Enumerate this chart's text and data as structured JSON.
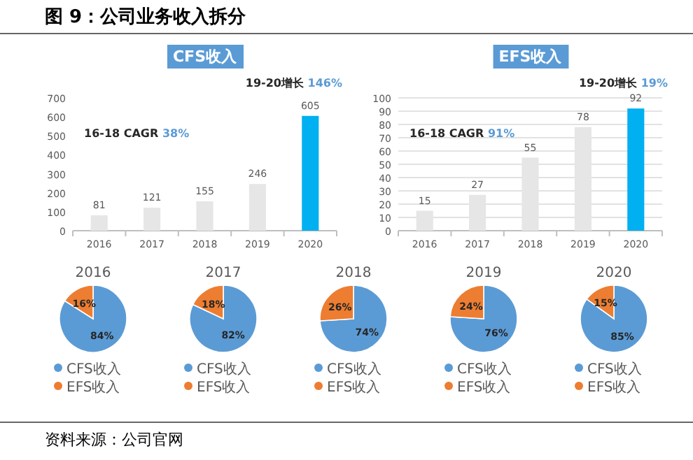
{
  "chart_data": [
    {
      "type": "other",
      "title": "图 9：公司业务收入拆分",
      "annotations": [
        "资料来源：公司官网"
      ]
    },
    {
      "type": "bar",
      "title": "CFS收入",
      "categories": [
        "2016",
        "2017",
        "2018",
        "2019",
        "2020"
      ],
      "values": [
        81,
        121,
        155,
        246,
        605
      ],
      "colors": [
        "#e6e6e6",
        "#e6e6e6",
        "#e6e6e6",
        "#e6e6e6",
        "#00b0f0"
      ],
      "ylim": [
        0,
        700
      ],
      "yticks": [
        0,
        100,
        200,
        300,
        400,
        500,
        600,
        700
      ],
      "data_labels": true,
      "annotations": [
        "16-18 CAGR 38%",
        "19-20增长 146%"
      ]
    },
    {
      "type": "bar",
      "title": "EFS收入",
      "categories": [
        "2016",
        "2017",
        "2018",
        "2019",
        "2020"
      ],
      "values": [
        15,
        27,
        55,
        78,
        92
      ],
      "colors": [
        "#e6e6e6",
        "#e6e6e6",
        "#e6e6e6",
        "#e6e6e6",
        "#00b0f0"
      ],
      "ylim": [
        0,
        100
      ],
      "yticks": [
        0,
        10,
        20,
        30,
        40,
        50,
        60,
        70,
        80,
        90,
        100
      ],
      "grid": "y",
      "data_labels": true,
      "annotations": [
        "16-18 CAGR 91%",
        "19-20增长 19%"
      ]
    },
    {
      "type": "pie",
      "title": "2016",
      "categories": [
        "CFS收入",
        "EFS收入"
      ],
      "values": [
        84,
        16
      ],
      "value_labels": [
        "84%",
        "16%"
      ],
      "colors": [
        "#5b9bd5",
        "#ed7d31"
      ],
      "legend": "bottom"
    },
    {
      "type": "pie",
      "title": "2017",
      "categories": [
        "CFS收入",
        "EFS收入"
      ],
      "values": [
        82,
        18
      ],
      "value_labels": [
        "82%",
        "18%"
      ],
      "colors": [
        "#5b9bd5",
        "#ed7d31"
      ],
      "legend": "bottom"
    },
    {
      "type": "pie",
      "title": "2018",
      "categories": [
        "CFS收入",
        "EFS收入"
      ],
      "values": [
        74,
        26
      ],
      "value_labels": [
        "74%",
        "26%"
      ],
      "colors": [
        "#5b9bd5",
        "#ed7d31"
      ],
      "legend": "bottom"
    },
    {
      "type": "pie",
      "title": "2019",
      "categories": [
        "CFS收入",
        "EFS收入"
      ],
      "values": [
        76,
        24
      ],
      "value_labels": [
        "76%",
        "24%"
      ],
      "colors": [
        "#5b9bd5",
        "#ed7d31"
      ],
      "legend": "bottom"
    },
    {
      "type": "pie",
      "title": "2020",
      "categories": [
        "CFS收入",
        "EFS收入"
      ],
      "values": [
        85,
        15
      ],
      "value_labels": [
        "85%",
        "15%"
      ],
      "colors": [
        "#5b9bd5",
        "#ed7d31"
      ],
      "legend": "bottom"
    }
  ]
}
